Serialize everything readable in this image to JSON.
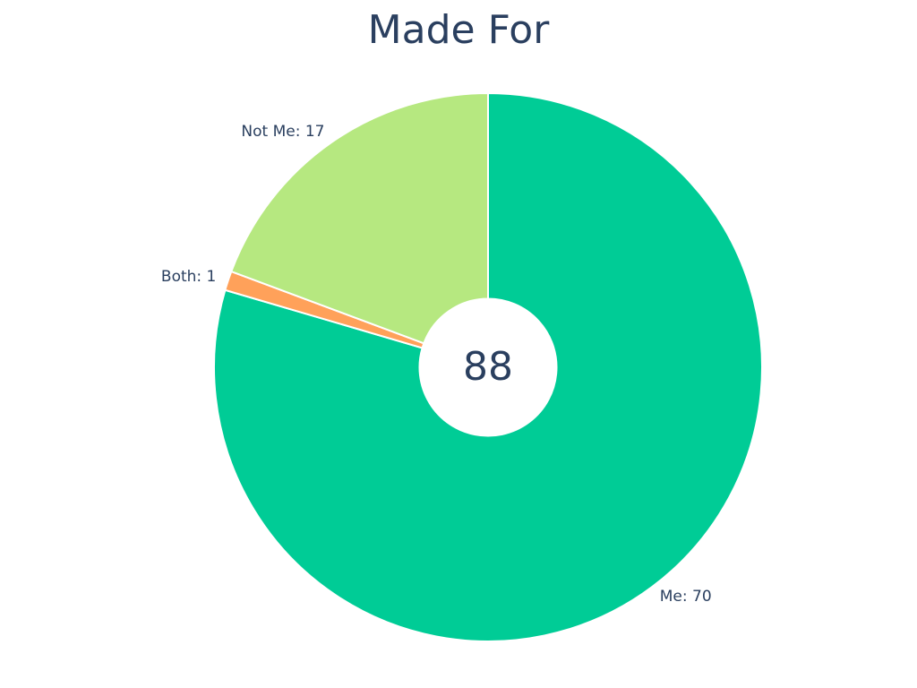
{
  "chart_data": {
    "type": "pie",
    "title": "Made For",
    "categories": [
      "Me",
      "Both",
      "Not Me"
    ],
    "values": [
      70,
      1,
      17
    ],
    "value_labels": [
      "Me: 70",
      "Both: 1",
      "Not Me: 17"
    ],
    "colors": [
      "#00cc96",
      "#ffa15a",
      "#b6e880"
    ],
    "hole": 0.25,
    "annotation": "88"
  }
}
